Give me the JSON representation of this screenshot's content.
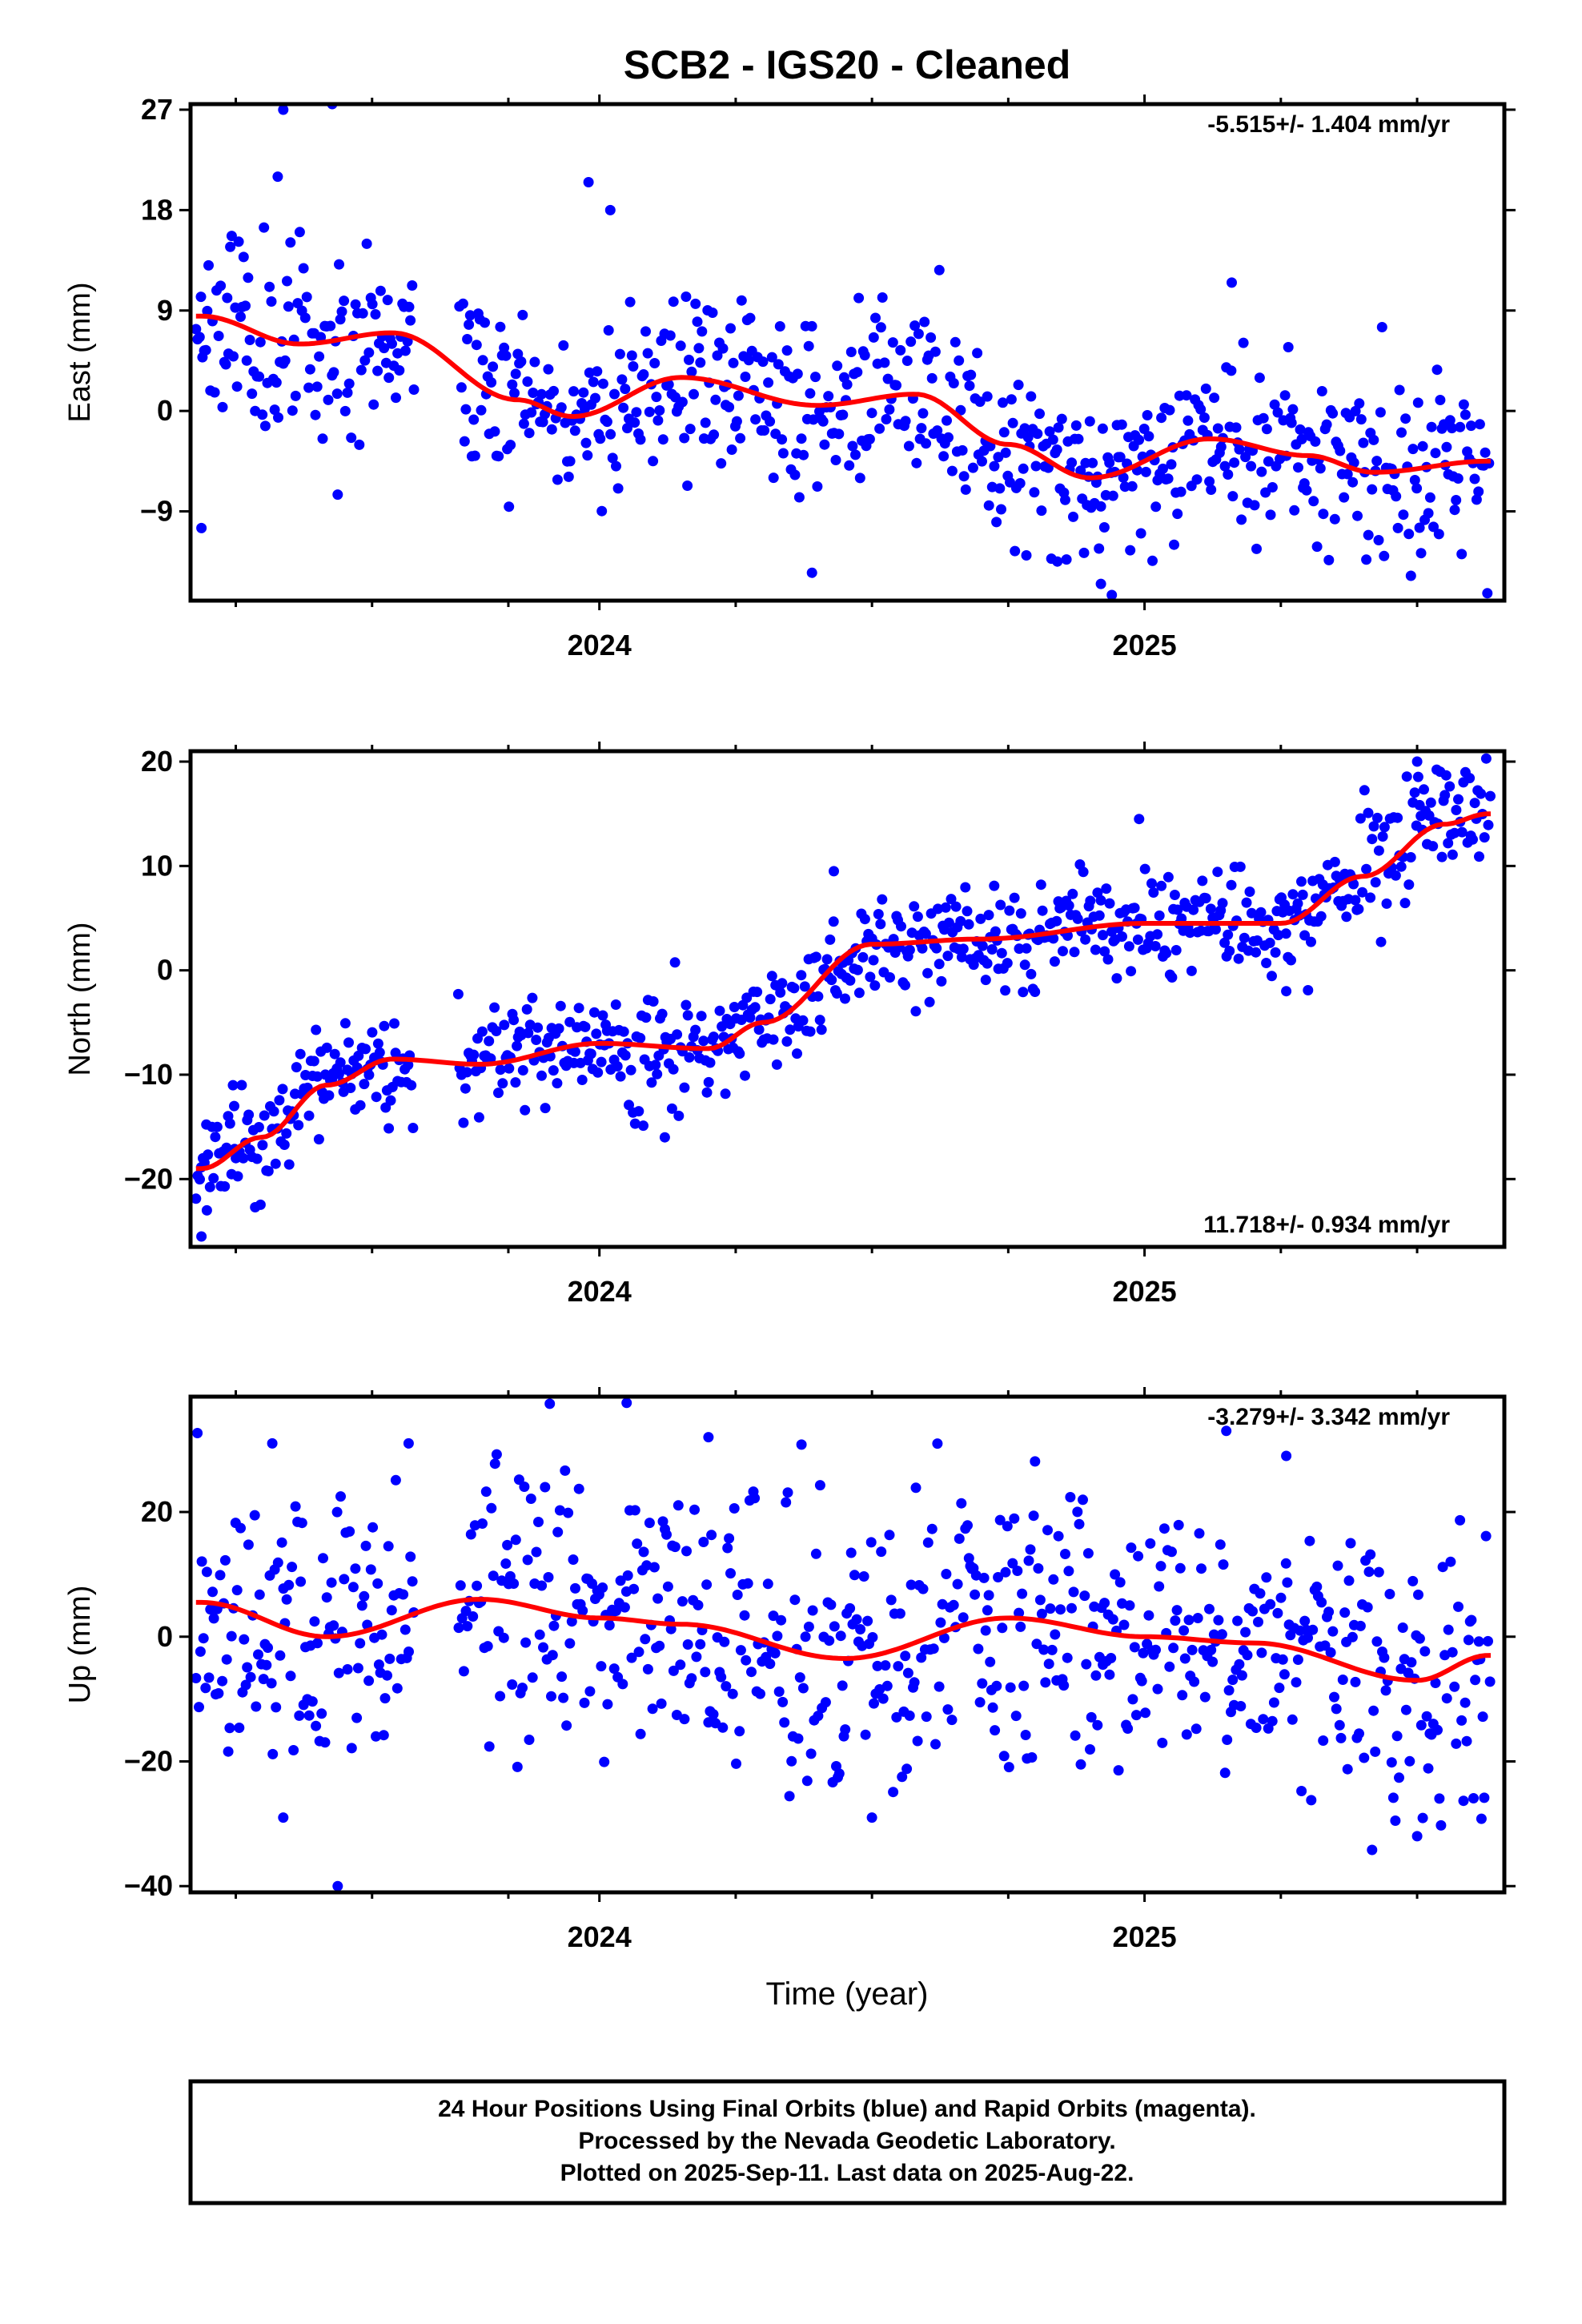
{
  "chart_data": {
    "type": "scatter",
    "title": "SCB2  - IGS20 - Cleaned",
    "xlabel": "Time (year)",
    "xlim": [
      2023.25,
      2025.66
    ],
    "x_ticks_labeled": [
      2024,
      2025
    ],
    "x_ticks_minor": [
      2023.333,
      2023.583,
      2023.833,
      2024.25,
      2024.5,
      2024.75,
      2025.25,
      2025.5
    ],
    "point_color": "#0000ff",
    "fit_color": "#ff0000",
    "panels": [
      {
        "name": "east",
        "ylabel": "East (mm)",
        "ylim": [
          -17,
          27.5
        ],
        "yticks": [
          27,
          18,
          9,
          0,
          -9
        ],
        "rate": "-5.515+/- 1.404 mm/yr",
        "rate_position": "top-right",
        "trend": [
          [
            2023.27,
            8.5
          ],
          [
            2023.45,
            6.0
          ],
          [
            2023.62,
            7.0
          ],
          [
            2023.85,
            1.0
          ],
          [
            2023.95,
            -0.5
          ],
          [
            2024.15,
            3.0
          ],
          [
            2024.4,
            0.5
          ],
          [
            2024.58,
            1.5
          ],
          [
            2024.75,
            -3.0
          ],
          [
            2024.9,
            -6.0
          ],
          [
            2025.12,
            -2.5
          ],
          [
            2025.3,
            -4.0
          ],
          [
            2025.42,
            -5.5
          ],
          [
            2025.63,
            -4.5
          ]
        ],
        "trend_amp": 0.0,
        "scatter_sd": 4.2,
        "seed": 11,
        "outliers": [
          [
            2023.42,
            27
          ],
          [
            2023.51,
            27.5
          ],
          [
            2023.41,
            21
          ],
          [
            2023.98,
            20.5
          ],
          [
            2024.02,
            18
          ],
          [
            2023.27,
            -10.5
          ],
          [
            2024.39,
            -14.5
          ],
          [
            2024.94,
            -16.5
          ],
          [
            2024.92,
            -15.5
          ],
          [
            2023.52,
            -7.5
          ],
          [
            2024.84,
            -13.5
          ],
          [
            2025.16,
            11.5
          ]
        ]
      },
      {
        "name": "north",
        "ylabel": "North (mm)",
        "ylim": [
          -26.5,
          21
        ],
        "yticks": [
          20,
          10,
          0,
          -10,
          -20
        ],
        "rate": "11.718+/- 0.934 mm/yr",
        "rate_position": "bottom-right",
        "trend": [
          [
            2023.27,
            -19.0
          ],
          [
            2023.38,
            -16.0
          ],
          [
            2023.5,
            -11.0
          ],
          [
            2023.62,
            -8.5
          ],
          [
            2023.78,
            -9.0
          ],
          [
            2024.0,
            -7.0
          ],
          [
            2024.2,
            -7.5
          ],
          [
            2024.3,
            -5.0
          ],
          [
            2024.5,
            2.5
          ],
          [
            2024.7,
            3.0
          ],
          [
            2025.0,
            4.5
          ],
          [
            2025.25,
            4.5
          ],
          [
            2025.4,
            9.0
          ],
          [
            2025.55,
            14.0
          ],
          [
            2025.63,
            15.0
          ]
        ],
        "trend_amp": 0.0,
        "scatter_sd": 2.6,
        "seed": 23,
        "outliers": [
          [
            2023.27,
            -25.5
          ],
          [
            2023.28,
            -23
          ],
          [
            2024.12,
            -16
          ],
          [
            2024.43,
            9.5
          ],
          [
            2024.99,
            14.5
          ],
          [
            2025.26,
            -2
          ],
          [
            2023.33,
            -13
          ],
          [
            2025.5,
            20
          ]
        ]
      },
      {
        "name": "up",
        "ylabel": "Up (mm)",
        "ylim": [
          -41,
          38.5
        ],
        "yticks": [
          20,
          0,
          -20,
          -40
        ],
        "rate": "-3.279+/- 3.342 mm/yr",
        "rate_position": "top-right",
        "trend": [
          [
            2023.27,
            5.5
          ],
          [
            2023.5,
            0.0
          ],
          [
            2023.78,
            6.0
          ],
          [
            2024.0,
            3.0
          ],
          [
            2024.15,
            2.0
          ],
          [
            2024.45,
            -3.5
          ],
          [
            2024.75,
            3.0
          ],
          [
            2025.0,
            0.0
          ],
          [
            2025.2,
            -1.0
          ],
          [
            2025.5,
            -7.0
          ],
          [
            2025.63,
            -3.0
          ]
        ],
        "trend_amp": 0.0,
        "scatter_sd": 11.0,
        "seed": 37,
        "outliers": [
          [
            2023.52,
            -40
          ],
          [
            2024.05,
            37.5
          ],
          [
            2024.2,
            32
          ],
          [
            2025.15,
            33
          ],
          [
            2025.26,
            29
          ],
          [
            2023.65,
            31
          ],
          [
            2024.5,
            -29
          ],
          [
            2023.4,
            31
          ],
          [
            2025.5,
            -32
          ],
          [
            2023.42,
            -29
          ]
        ]
      }
    ]
  },
  "footer": {
    "line1": "24 Hour Positions Using Final Orbits (blue) and Rapid Orbits (magenta).",
    "line2": "Processed by the Nevada Geodetic Laboratory.",
    "line3": "Plotted on 2025-Sep-11. Last data on 2025-Aug-22."
  }
}
